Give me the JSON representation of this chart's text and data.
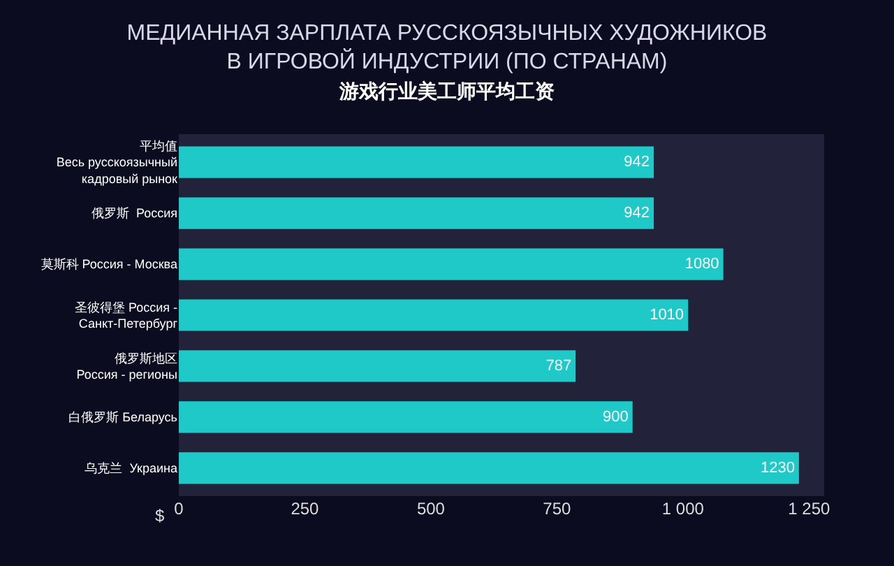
{
  "chart_data": {
    "type": "bar",
    "orientation": "horizontal",
    "title": "МЕДИАННАЯ ЗАРПЛАТА РУССКОЯЗЫЧНЫХ ХУДОЖНИКОВ\nВ ИГРОВОЙ ИНДУСТРИИ (ПО СТРАНАМ)",
    "subtitle": "游戏行业美工师平均工资",
    "categories": [
      "平均值\nВесь русскоязычный\nкадровый рынок",
      "俄罗斯  Россия",
      "莫斯科 Россия - Москва",
      "圣彼得堡 Россия -\nСанкт-Петербург",
      "俄罗斯地区\nРоссия - регионы",
      "白俄罗斯 Беларусь",
      "乌克兰  Украина"
    ],
    "values": [
      942,
      942,
      1080,
      1010,
      787,
      900,
      1230
    ],
    "color": "#1ec9c8",
    "data_labels": true,
    "grid": false,
    "xlim": [
      0,
      1280
    ],
    "xticks": [
      0,
      250,
      500,
      750,
      {
        "value": 1000,
        "label": "1 000"
      },
      {
        "value": 1250,
        "label": "1 250"
      }
    ],
    "annotations": [
      "$"
    ]
  }
}
